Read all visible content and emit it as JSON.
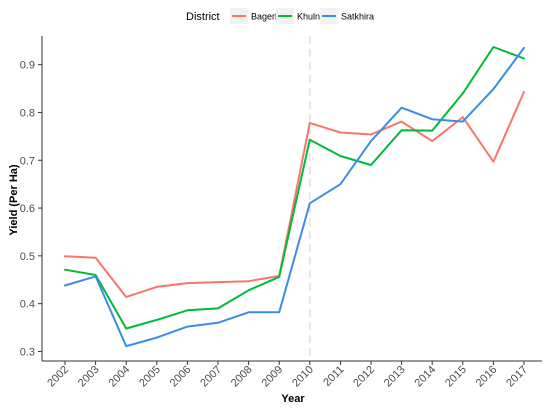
{
  "chart_data": {
    "type": "line",
    "xlabel": "Year",
    "ylabel": "Yield (Per Ha)",
    "categories": [
      "2002",
      "2003",
      "2004",
      "2005",
      "2006",
      "2007",
      "2008",
      "2009",
      "2010",
      "2011",
      "2012",
      "2013",
      "2014",
      "2015",
      "2016",
      "2017"
    ],
    "ylim": [
      0.28,
      0.96
    ],
    "yticks": [
      0.3,
      0.4,
      0.5,
      0.6,
      0.7,
      0.8,
      0.9
    ],
    "ytick_labels": [
      "0.3",
      "0.4",
      "0.5",
      "0.6",
      "0.7",
      "0.8",
      "0.9"
    ],
    "vline": {
      "x": "2010",
      "style": "dashed",
      "color": "#e0e0e0"
    },
    "grid": false,
    "legend": {
      "title": "District",
      "position": "top"
    },
    "series": [
      {
        "name": "Bagerhat",
        "color": "#f8766d",
        "values": [
          0.499,
          0.496,
          0.414,
          0.435,
          0.443,
          0.445,
          0.447,
          0.458,
          0.778,
          0.758,
          0.754,
          0.781,
          0.74,
          0.79,
          0.697,
          0.843
        ]
      },
      {
        "name": "Khulna",
        "color": "#00ba38",
        "values": [
          0.471,
          0.46,
          0.348,
          0.366,
          0.386,
          0.39,
          0.428,
          0.456,
          0.743,
          0.709,
          0.69,
          0.763,
          0.762,
          0.84,
          0.937,
          0.913
        ]
      },
      {
        "name": "Satkhira",
        "color": "#3a8ee6",
        "values": [
          0.438,
          0.457,
          0.311,
          0.329,
          0.352,
          0.36,
          0.382,
          0.382,
          0.61,
          0.65,
          0.74,
          0.81,
          0.786,
          0.781,
          0.849,
          0.935
        ]
      }
    ]
  }
}
